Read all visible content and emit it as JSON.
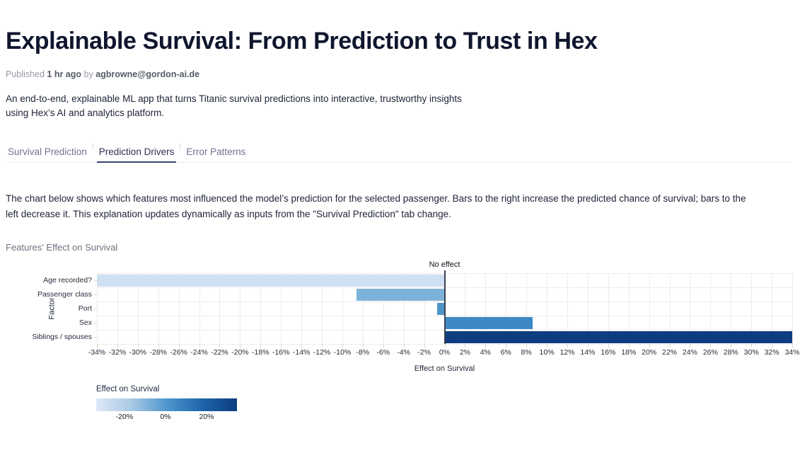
{
  "header": {
    "title": "Explainable Survival: From Prediction to Trust in Hex",
    "published_prefix": "Published",
    "published_time": "1 hr ago",
    "published_by_word": "by",
    "author": "agbrowne@gordon-ai.de",
    "description_line1": "An end-to-end, explainable ML app that turns Titanic survival predictions into interactive, trustworthy insights",
    "description_line2": "using Hex’s AI and analytics platform."
  },
  "tabs": [
    {
      "label": "Survival Prediction",
      "active": false
    },
    {
      "label": "Prediction Drivers",
      "active": true
    },
    {
      "label": "Error Patterns",
      "active": false
    }
  ],
  "main": {
    "paragraph_line1": "The chart below shows which features most influenced the model’s prediction for the selected passenger. Bars to the right increase the predicted chance of survival; bars to the",
    "paragraph_line2": "left decrease it. This explanation updates dynamically as inputs from the \"Survival Prediction\" tab change.",
    "chart_heading": "Features' Effect on Survival"
  },
  "chart_data": {
    "type": "bar",
    "orientation": "horizontal",
    "title": "Features' Effect on Survival",
    "categories": [
      "Age recorded?",
      "Passenger class",
      "Port",
      "Sex",
      "Siblings / spouses"
    ],
    "values_pct": [
      -34,
      -8.6,
      -0.7,
      8.6,
      34
    ],
    "bar_colors": [
      "#cfe0f2",
      "#7db3da",
      "#4e94c8",
      "#3e89c4",
      "#0e3d80"
    ],
    "xlabel": "Effect on Survival",
    "ylabel": "Factor",
    "xlim_pct": [
      -34,
      34
    ],
    "x_tick_step_pct": 2,
    "x_ticks": [
      "-34%",
      "-32%",
      "-30%",
      "-28%",
      "-26%",
      "-24%",
      "-22%",
      "-20%",
      "-18%",
      "-16%",
      "-14%",
      "-12%",
      "-10%",
      "-8%",
      "-6%",
      "-4%",
      "-2%",
      "0%",
      "2%",
      "4%",
      "6%",
      "8%",
      "10%",
      "12%",
      "14%",
      "16%",
      "18%",
      "20%",
      "22%",
      "24%",
      "26%",
      "28%",
      "30%",
      "32%",
      "34%"
    ],
    "zero_annotation": "No effect",
    "grid": true,
    "legend": {
      "title": "Effect on Survival",
      "tick_labels": [
        "-20%",
        "0%",
        "20%"
      ],
      "gradient_colors": [
        "#dde8f6",
        "#a9c9e5",
        "#4e97cd",
        "#1f64aa",
        "#0b3d7f"
      ],
      "position": "bottom-left"
    }
  }
}
